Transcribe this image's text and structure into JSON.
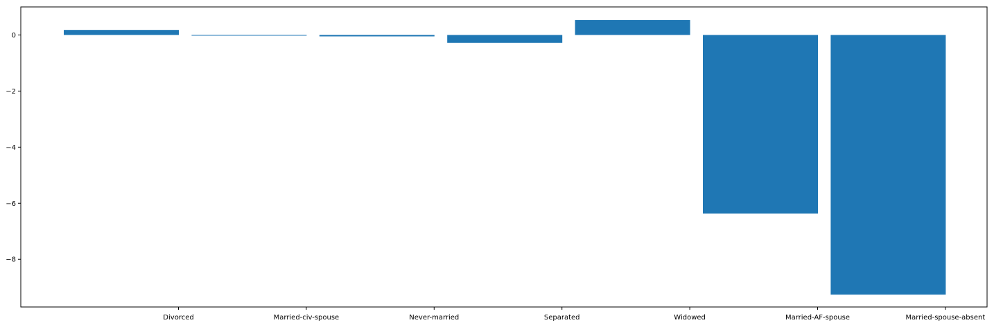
{
  "chart_data": {
    "type": "bar",
    "categories": [
      "Divorced",
      "Married-civ-spouse",
      "Never-married",
      "Separated",
      "Widowed",
      "Married-AF-spouse",
      "Married-spouse-absent"
    ],
    "values": [
      0.18,
      0.0,
      -0.05,
      -0.28,
      0.53,
      -6.37,
      -9.26
    ],
    "xlabel": "",
    "ylabel": "",
    "ylim": [
      -9.7,
      1.0
    ],
    "yticks": [
      0,
      -2,
      -4,
      -6,
      -8
    ],
    "grid": false,
    "legend": "none",
    "bar_color": "#1f77b4"
  }
}
